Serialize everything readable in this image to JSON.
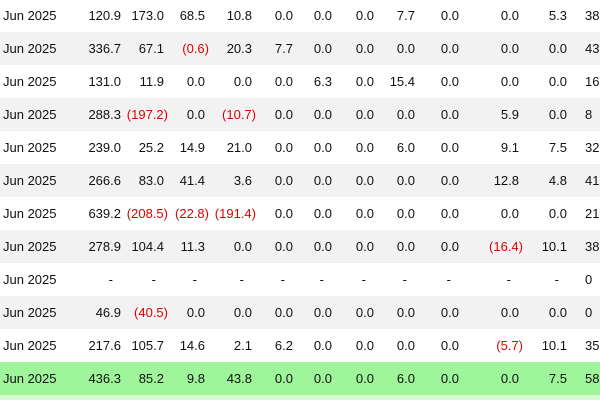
{
  "table": {
    "rows": [
      [
        "Jun 2025",
        "120.9",
        "173.0",
        "68.5",
        "10.8",
        "0.0",
        "0.0",
        "0.0",
        "7.7",
        "0.0",
        "0.0",
        "5.3",
        "38"
      ],
      [
        "Jun 2025",
        "336.7",
        "67.1",
        "(0.6)",
        "20.3",
        "7.7",
        "0.0",
        "0.0",
        "0.0",
        "0.0",
        "0.0",
        "0.0",
        "43"
      ],
      [
        "Jun 2025",
        "131.0",
        "11.9",
        "0.0",
        "0.0",
        "0.0",
        "6.3",
        "0.0",
        "15.4",
        "0.0",
        "0.0",
        "0.0",
        "16"
      ],
      [
        "Jun 2025",
        "288.3",
        "(197.2)",
        "0.0",
        "(10.7)",
        "0.0",
        "0.0",
        "0.0",
        "0.0",
        "0.0",
        "5.9",
        "0.0",
        "8"
      ],
      [
        "Jun 2025",
        "239.0",
        "25.2",
        "14.9",
        "21.0",
        "0.0",
        "0.0",
        "0.0",
        "6.0",
        "0.0",
        "9.1",
        "7.5",
        "32"
      ],
      [
        "Jun 2025",
        "266.6",
        "83.0",
        "41.4",
        "3.6",
        "0.0",
        "0.0",
        "0.0",
        "0.0",
        "0.0",
        "12.8",
        "4.8",
        "41"
      ],
      [
        "Jun 2025",
        "639.2",
        "(208.5)",
        "(22.8)",
        "(191.4)",
        "0.0",
        "0.0",
        "0.0",
        "0.0",
        "0.0",
        "0.0",
        "0.0",
        "21"
      ],
      [
        "Jun 2025",
        "278.9",
        "104.4",
        "11.3",
        "0.0",
        "0.0",
        "0.0",
        "0.0",
        "0.0",
        "0.0",
        "(16.4)",
        "10.1",
        "38"
      ],
      [
        "Jun 2025",
        "-",
        "-",
        "-",
        "-",
        "-",
        "-",
        "-",
        "-",
        "-",
        "-",
        "-",
        "0"
      ],
      [
        "Jun 2025",
        "46.9",
        "(40.5)",
        "0.0",
        "0.0",
        "0.0",
        "0.0",
        "0.0",
        "0.0",
        "0.0",
        "0.0",
        "0.0",
        "0"
      ],
      [
        "Jun 2025",
        "217.6",
        "105.7",
        "14.6",
        "2.1",
        "6.2",
        "0.0",
        "0.0",
        "0.0",
        "0.0",
        "(5.7)",
        "10.1",
        "35"
      ],
      [
        "Jun 2025",
        "436.3",
        "85.2",
        "9.8",
        "43.8",
        "0.0",
        "0.0",
        "0.0",
        "6.0",
        "0.0",
        "0.0",
        "7.5",
        "58"
      ]
    ]
  }
}
